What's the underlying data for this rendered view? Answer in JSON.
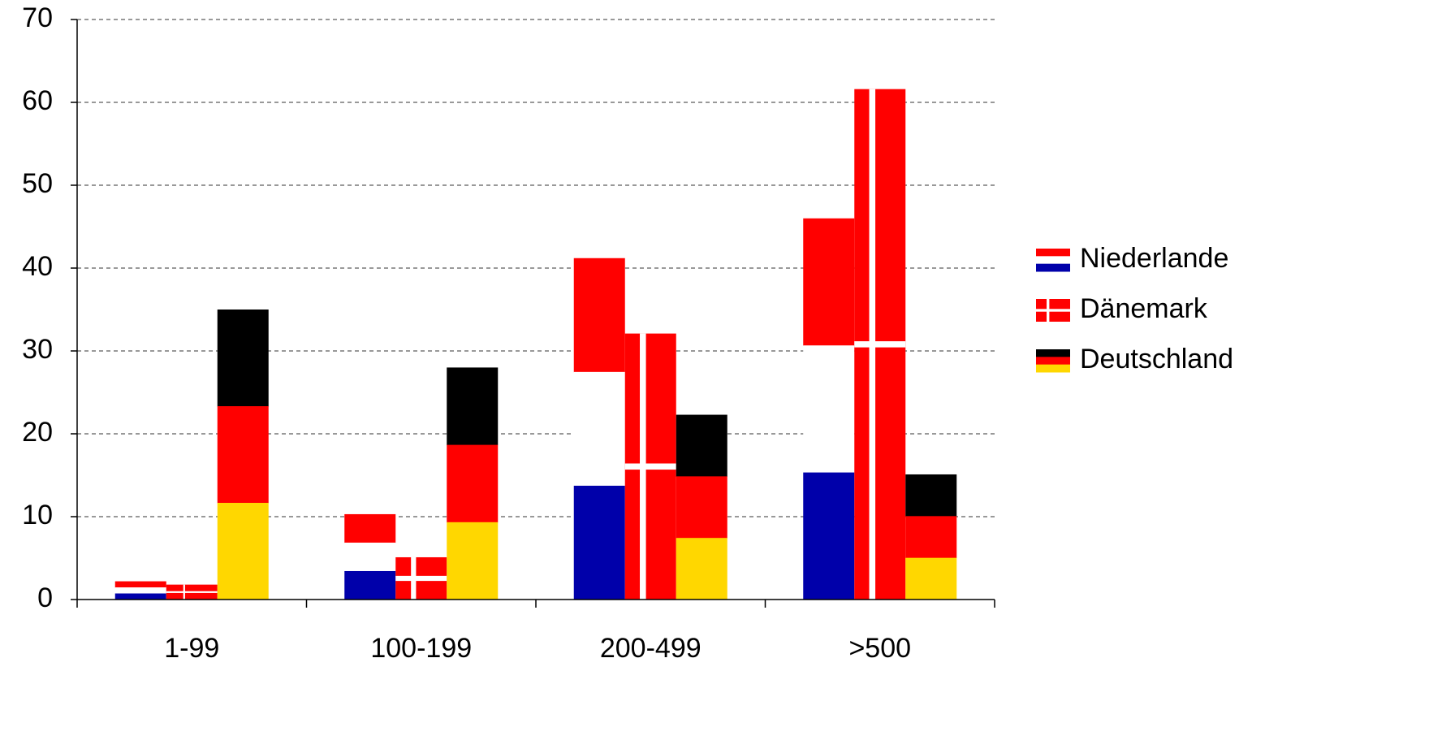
{
  "chart_data": {
    "type": "bar",
    "categories": [
      "1-99",
      "100-199",
      "200-499",
      ">500"
    ],
    "series": [
      {
        "name": "Niederlande",
        "colors": [
          "#ff0000",
          "#ffffff",
          "#0000aa"
        ],
        "values": [
          2.2,
          10.3,
          41.2,
          46.0
        ]
      },
      {
        "name": "Dänemark",
        "colors": [
          "#ff0000",
          "#ffffff"
        ],
        "values": [
          1.8,
          5.1,
          32.1,
          61.6
        ]
      },
      {
        "name": "Deutschland",
        "colors": [
          "#000000",
          "#ff0000",
          "#ffd700"
        ],
        "values": [
          35.0,
          28.0,
          22.3,
          15.1
        ]
      }
    ],
    "ylim": [
      0,
      70
    ],
    "yticks": [
      0,
      10,
      20,
      30,
      40,
      50,
      60,
      70
    ],
    "grid": true,
    "legend": "right"
  }
}
